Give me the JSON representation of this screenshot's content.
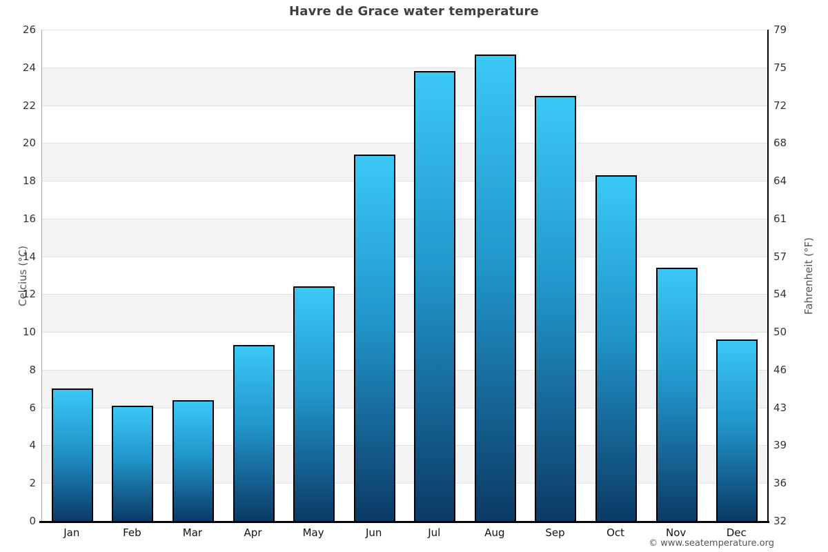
{
  "title": "Havre de Grace water temperature",
  "footer_credit": "© www.seatemperature.org",
  "chart_data": {
    "type": "bar",
    "title": "Havre de Grace water temperature",
    "categories": [
      "Jan",
      "Feb",
      "Mar",
      "Apr",
      "May",
      "Jun",
      "Jul",
      "Aug",
      "Sep",
      "Oct",
      "Nov",
      "Dec"
    ],
    "values": [
      7.0,
      6.1,
      6.4,
      9.3,
      12.4,
      19.4,
      23.8,
      24.7,
      22.5,
      18.3,
      13.4,
      9.6
    ],
    "ylabel_left": "Celcius (°C)",
    "ylabel_right": "Fahrenheit (°F)",
    "ylim_celsius": [
      0,
      26
    ],
    "yticks_celsius": [
      0,
      2,
      4,
      6,
      8,
      10,
      12,
      14,
      16,
      18,
      20,
      22,
      24,
      26
    ],
    "yticks_fahrenheit": [
      32,
      36,
      39,
      43,
      46,
      50,
      54,
      57,
      61,
      64,
      68,
      72,
      75,
      79
    ],
    "grid": "horizontal-bands",
    "legend": "none",
    "colors": {
      "bar_gradient_top": "#3bc8f6",
      "bar_gradient_mid": "#2196cb",
      "bar_gradient_bottom": "#0b3a66",
      "bar_border": "#000000",
      "band_alt": "#f3f3f3",
      "band_main": "#ffffff",
      "gridline": "#e2e2e2",
      "axis_line": "#000000",
      "left_spine": "#aaaaaa",
      "title_color": "#3f3f3f"
    }
  }
}
